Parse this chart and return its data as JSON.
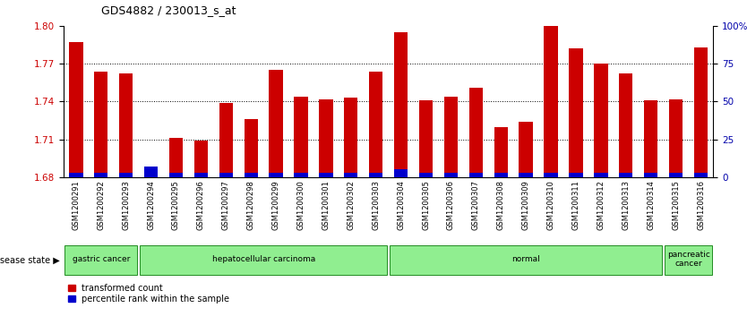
{
  "title": "GDS4882 / 230013_s_at",
  "samples": [
    "GSM1200291",
    "GSM1200292",
    "GSM1200293",
    "GSM1200294",
    "GSM1200295",
    "GSM1200296",
    "GSM1200297",
    "GSM1200298",
    "GSM1200299",
    "GSM1200300",
    "GSM1200301",
    "GSM1200302",
    "GSM1200303",
    "GSM1200304",
    "GSM1200305",
    "GSM1200306",
    "GSM1200307",
    "GSM1200308",
    "GSM1200309",
    "GSM1200310",
    "GSM1200311",
    "GSM1200312",
    "GSM1200313",
    "GSM1200314",
    "GSM1200315",
    "GSM1200316"
  ],
  "red_values": [
    1.787,
    1.764,
    1.762,
    1.683,
    1.711,
    1.709,
    1.739,
    1.726,
    1.765,
    1.744,
    1.742,
    1.743,
    1.764,
    1.795,
    1.741,
    1.744,
    1.751,
    1.72,
    1.724,
    1.8,
    1.782,
    1.77,
    1.762,
    1.741,
    1.742,
    1.783
  ],
  "blue_values": [
    3,
    3,
    3,
    7,
    3,
    3,
    3,
    3,
    3,
    3,
    3,
    3,
    3,
    5,
    3,
    3,
    3,
    3,
    3,
    3,
    3,
    3,
    3,
    3,
    3,
    3
  ],
  "groups": [
    {
      "label": "gastric cancer",
      "start": 0,
      "end": 2
    },
    {
      "label": "hepatocellular carcinoma",
      "start": 3,
      "end": 12
    },
    {
      "label": "normal",
      "start": 13,
      "end": 23
    },
    {
      "label": "pancreatic\ncancer",
      "start": 24,
      "end": 25
    }
  ],
  "ylim_left": [
    1.68,
    1.8
  ],
  "yticks_left": [
    1.68,
    1.71,
    1.74,
    1.77,
    1.8
  ],
  "yticks_right": [
    0,
    25,
    50,
    75,
    100
  ],
  "ylabel_right_labels": [
    "0",
    "25",
    "50",
    "75",
    "100%"
  ],
  "bar_color": "#CC0000",
  "blue_bar_color": "#0000CC",
  "green_color": "#90EE90",
  "green_edge": "#228B22",
  "tick_label_color_left": "#CC0000",
  "tick_label_color_right": "#0000AA"
}
